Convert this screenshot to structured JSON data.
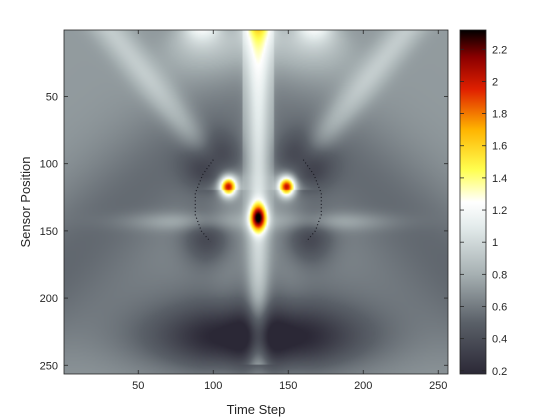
{
  "chart_data": {
    "type": "heatmap",
    "title": "",
    "xlabel": "Time Step",
    "ylabel": "Sensor Position",
    "xlim": [
      1,
      256
    ],
    "ylim": [
      1,
      256
    ],
    "y_reversed": true,
    "x_ticks": [
      50,
      100,
      150,
      200,
      250
    ],
    "y_ticks": [
      50,
      100,
      150,
      200,
      250
    ],
    "colorbar": {
      "range": [
        0.18,
        2.32
      ],
      "ticks": [
        0.2,
        0.4,
        0.6,
        0.8,
        1,
        1.2,
        1.4,
        1.6,
        1.8,
        2,
        2.2
      ],
      "colormap": [
        {
          "value": 0.18,
          "color": "#2b2836"
        },
        {
          "value": 0.5,
          "color": "#5a6068"
        },
        {
          "value": 0.8,
          "color": "#a6b0b2"
        },
        {
          "value": 1.1,
          "color": "#e4ecec"
        },
        {
          "value": 1.25,
          "color": "#ffffff"
        },
        {
          "value": 1.45,
          "color": "#ffff50"
        },
        {
          "value": 1.7,
          "color": "#ffb400"
        },
        {
          "value": 1.95,
          "color": "#e02000"
        },
        {
          "value": 2.15,
          "color": "#8c0000"
        },
        {
          "value": 2.32,
          "color": "#000000"
        }
      ]
    },
    "features": {
      "hotspots": [
        {
          "x": 110,
          "y": 117,
          "peak": 2.3
        },
        {
          "x": 149,
          "y": 117,
          "peak": 2.3
        },
        {
          "x": 130,
          "y": 140,
          "peak": 2.3
        }
      ],
      "top_bright_fan": [
        {
          "x": 93,
          "y": 1,
          "peak": 1.45
        },
        {
          "x": 130,
          "y": 1,
          "peak": 1.45
        },
        {
          "x": 167,
          "y": 1,
          "peak": 1.45
        }
      ],
      "dark_lobes": [
        {
          "x": 100,
          "y": 100,
          "value": 0.3
        },
        {
          "x": 160,
          "y": 100,
          "value": 0.3
        },
        {
          "x": 97,
          "y": 155,
          "value": 0.4
        },
        {
          "x": 163,
          "y": 155,
          "value": 0.4
        },
        {
          "x": 130,
          "y": 230,
          "value": 0.2
        }
      ],
      "dotted_arcs": [
        {
          "points": [
            [
              100,
              97
            ],
            [
              93,
              108
            ],
            [
              88,
              122
            ],
            [
              88,
              138
            ],
            [
              92,
              150
            ],
            [
              98,
              158
            ]
          ]
        },
        {
          "points": [
            [
              160,
              97
            ],
            [
              167,
              108
            ],
            [
              172,
              122
            ],
            [
              172,
              138
            ],
            [
              168,
              150
            ],
            [
              162,
              158
            ]
          ]
        }
      ]
    }
  }
}
